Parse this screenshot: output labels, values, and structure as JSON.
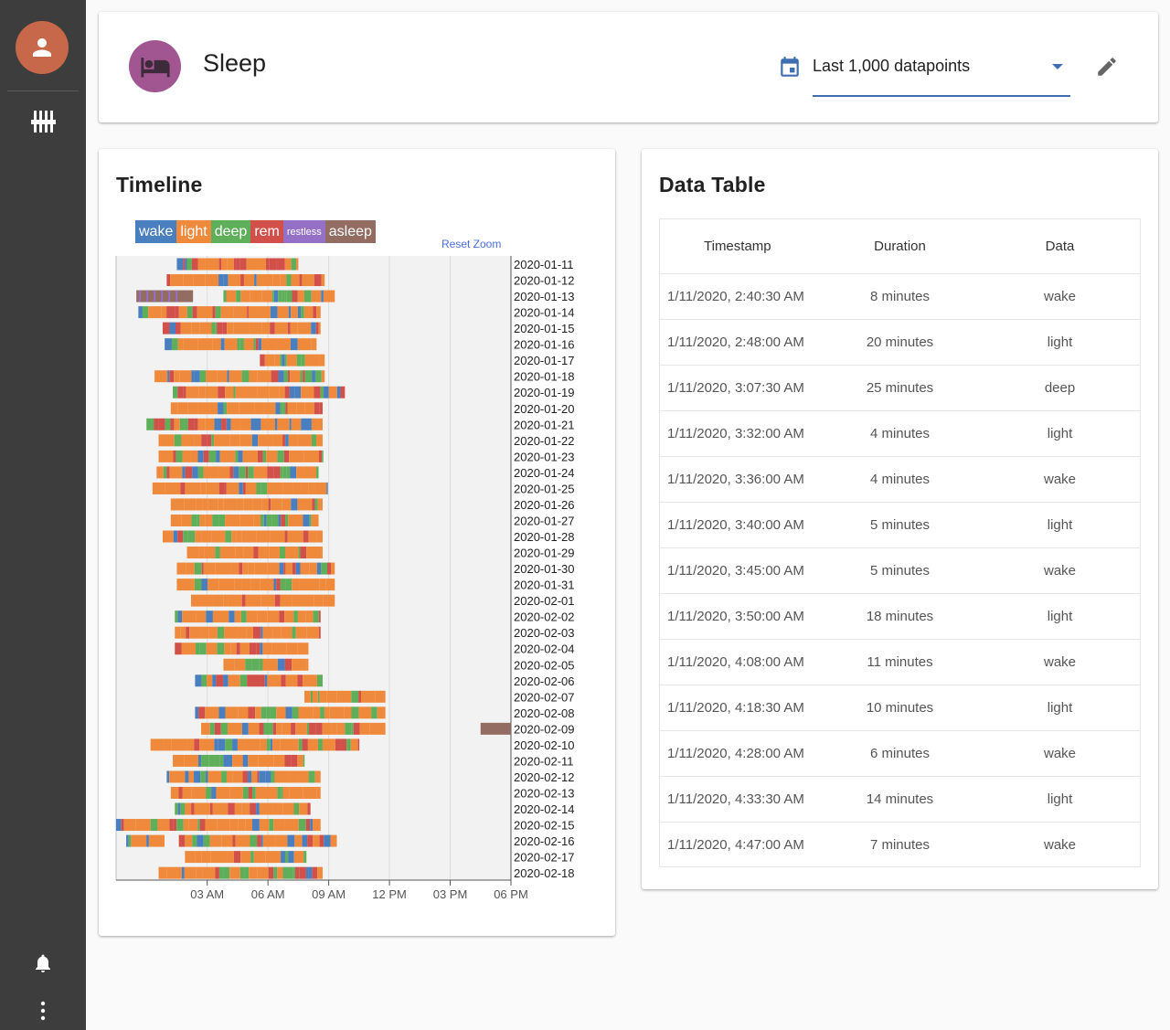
{
  "header": {
    "title": "Sleep",
    "range_select": "Last 1,000 datapoints",
    "icons": {
      "source": "bed-icon",
      "calendar": "calendar-icon",
      "edit": "pencil-icon"
    }
  },
  "sidebar": {
    "icons": [
      "user-avatar-icon",
      "sliders-icon",
      "bell-icon",
      "more-vertical-icon"
    ]
  },
  "timeline": {
    "title": "Timeline",
    "reset_zoom": "Reset Zoom",
    "legend": [
      {
        "label": "wake",
        "color": "#4a7fbf"
      },
      {
        "label": "light",
        "color": "#ef8a3c"
      },
      {
        "label": "deep",
        "color": "#5fae5a"
      },
      {
        "label": "rem",
        "color": "#d2504a"
      },
      {
        "label": "restless",
        "color": "#9470c6"
      },
      {
        "label": "asleep",
        "color": "#936d62"
      }
    ]
  },
  "chart_data": {
    "type": "timeline",
    "x_axis": {
      "range_hours": [
        -1.5,
        18
      ],
      "ticks": [
        "03 AM",
        "06 AM",
        "09 AM",
        "12 PM",
        "03 PM",
        "06 PM"
      ],
      "tick_hours": [
        3,
        6,
        9,
        12,
        15,
        18
      ]
    },
    "stage_colors": {
      "wake": "#4a7fbf",
      "light": "#ef8a3c",
      "deep": "#5fae5a",
      "rem": "#d2504a",
      "restless": "#9470c6",
      "asleep": "#936d62"
    },
    "nights": [
      {
        "date": "2020-01-11",
        "start": 1.5,
        "end": 7.5
      },
      {
        "date": "2020-01-12",
        "start": 1.0,
        "end": 8.8
      },
      {
        "date": "2020-01-13",
        "start": -0.5,
        "end": 9.3,
        "asleep_until": 2.3
      },
      {
        "date": "2020-01-14",
        "start": -0.4,
        "end": 8.6
      },
      {
        "date": "2020-01-15",
        "start": 0.8,
        "end": 8.6
      },
      {
        "date": "2020-01-16",
        "start": 0.9,
        "end": 8.4
      },
      {
        "date": "2020-01-17",
        "start": 5.6,
        "end": 8.8
      },
      {
        "date": "2020-01-18",
        "start": 0.4,
        "end": 8.8
      },
      {
        "date": "2020-01-19",
        "start": 1.3,
        "end": 9.8
      },
      {
        "date": "2020-01-20",
        "start": 1.2,
        "end": 8.7
      },
      {
        "date": "2020-01-21",
        "start": 0.0,
        "end": 8.7
      },
      {
        "date": "2020-01-22",
        "start": 0.6,
        "end": 8.7
      },
      {
        "date": "2020-01-23",
        "start": 0.6,
        "end": 8.7
      },
      {
        "date": "2020-01-24",
        "start": 0.5,
        "end": 8.5
      },
      {
        "date": "2020-01-25",
        "start": 0.3,
        "end": 8.9
      },
      {
        "date": "2020-01-26",
        "start": 1.2,
        "end": 8.7
      },
      {
        "date": "2020-01-27",
        "start": 1.2,
        "end": 8.5
      },
      {
        "date": "2020-01-28",
        "start": 0.8,
        "end": 8.7
      },
      {
        "date": "2020-01-29",
        "start": 2.0,
        "end": 8.7
      },
      {
        "date": "2020-01-30",
        "start": 1.5,
        "end": 9.3
      },
      {
        "date": "2020-01-31",
        "start": 1.5,
        "end": 9.3
      },
      {
        "date": "2020-02-01",
        "start": 2.2,
        "end": 9.3
      },
      {
        "date": "2020-02-02",
        "start": 1.4,
        "end": 8.6
      },
      {
        "date": "2020-02-03",
        "start": 1.4,
        "end": 8.6
      },
      {
        "date": "2020-02-04",
        "start": 1.4,
        "end": 8.0
      },
      {
        "date": "2020-02-05",
        "start": 3.8,
        "end": 8.0
      },
      {
        "date": "2020-02-06",
        "start": 2.4,
        "end": 8.7
      },
      {
        "date": "2020-02-07",
        "start": 7.8,
        "end": 11.8
      },
      {
        "date": "2020-02-08",
        "start": 2.4,
        "end": 11.8
      },
      {
        "date": "2020-02-09",
        "start": 2.7,
        "end": 11.8,
        "asleep_from": 16.5,
        "asleep_to": 18.0
      },
      {
        "date": "2020-02-10",
        "start": 0.2,
        "end": 10.5
      },
      {
        "date": "2020-02-11",
        "start": 1.3,
        "end": 7.8
      },
      {
        "date": "2020-02-12",
        "start": 1.0,
        "end": 8.6
      },
      {
        "date": "2020-02-13",
        "start": 1.2,
        "end": 8.6
      },
      {
        "date": "2020-02-14",
        "start": 1.4,
        "end": 8.1
      },
      {
        "date": "2020-02-15",
        "start": -1.5,
        "end": 8.6
      },
      {
        "date": "2020-02-16",
        "start": -1.0,
        "end": 9.4,
        "gap_from": 0.2,
        "gap_to": 1.6
      },
      {
        "date": "2020-02-17",
        "start": 1.9,
        "end": 7.9
      },
      {
        "date": "2020-02-18",
        "start": 0.6,
        "end": 8.7
      }
    ]
  },
  "data_table": {
    "title": "Data Table",
    "columns": [
      "Timestamp",
      "Duration",
      "Data"
    ],
    "rows": [
      {
        "timestamp": "1/11/2020, 2:40:30 AM",
        "duration": "8 minutes",
        "data": "wake"
      },
      {
        "timestamp": "1/11/2020, 2:48:00 AM",
        "duration": "20 minutes",
        "data": "light"
      },
      {
        "timestamp": "1/11/2020, 3:07:30 AM",
        "duration": "25 minutes",
        "data": "deep"
      },
      {
        "timestamp": "1/11/2020, 3:32:00 AM",
        "duration": "4 minutes",
        "data": "light"
      },
      {
        "timestamp": "1/11/2020, 3:36:00 AM",
        "duration": "4 minutes",
        "data": "wake"
      },
      {
        "timestamp": "1/11/2020, 3:40:00 AM",
        "duration": "5 minutes",
        "data": "light"
      },
      {
        "timestamp": "1/11/2020, 3:45:00 AM",
        "duration": "5 minutes",
        "data": "wake"
      },
      {
        "timestamp": "1/11/2020, 3:50:00 AM",
        "duration": "18 minutes",
        "data": "light"
      },
      {
        "timestamp": "1/11/2020, 4:08:00 AM",
        "duration": "11 minutes",
        "data": "wake"
      },
      {
        "timestamp": "1/11/2020, 4:18:30 AM",
        "duration": "10 minutes",
        "data": "light"
      },
      {
        "timestamp": "1/11/2020, 4:28:00 AM",
        "duration": "6 minutes",
        "data": "wake"
      },
      {
        "timestamp": "1/11/2020, 4:33:30 AM",
        "duration": "14 minutes",
        "data": "light"
      },
      {
        "timestamp": "1/11/2020, 4:47:00 AM",
        "duration": "7 minutes",
        "data": "wake"
      }
    ]
  }
}
